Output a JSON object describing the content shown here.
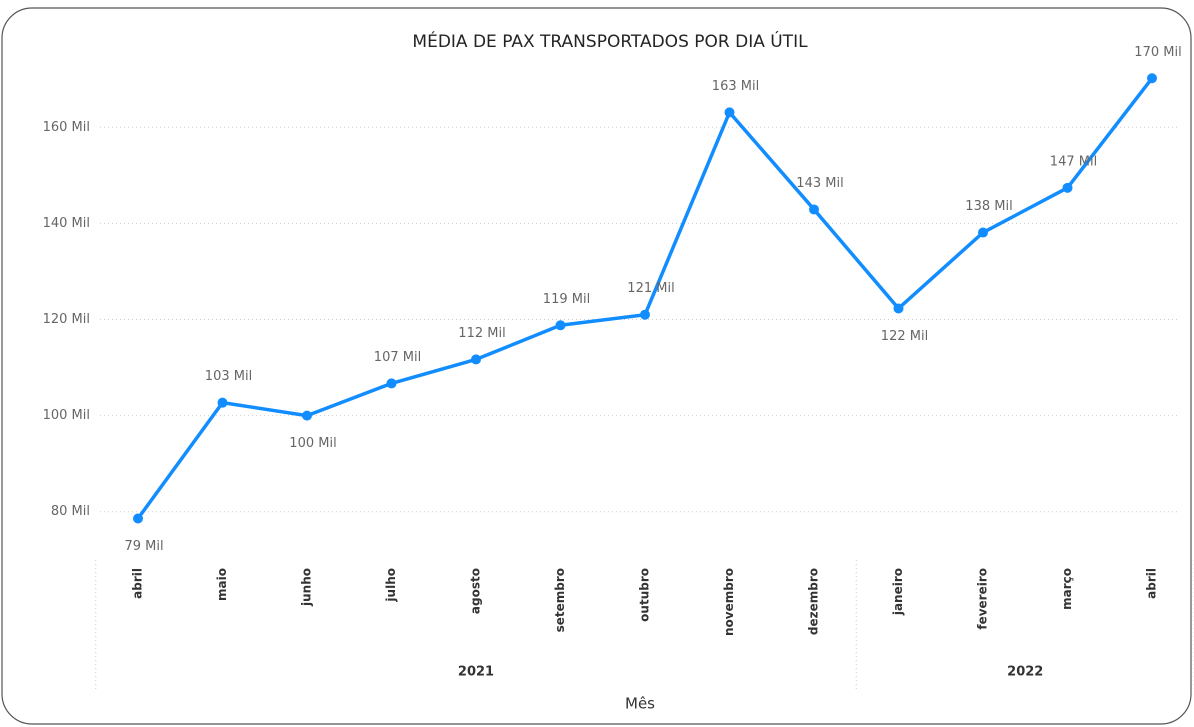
{
  "chart_data": {
    "type": "line",
    "title": "MÉDIA DE PAX TRANSPORTADOS POR DIA ÚTIL",
    "x_label": "Mês",
    "categories": [
      "abril",
      "maio",
      "junho",
      "julho",
      "agosto",
      "setembro",
      "outubro",
      "novembro",
      "dezembro",
      "janeiro",
      "fevereiro",
      "março",
      "abril"
    ],
    "x_groups": [
      {
        "label": "2021",
        "span": 9
      },
      {
        "label": "2022",
        "span": 4
      }
    ],
    "series": [
      {
        "name": "Média de PAX",
        "color": "#118DFF",
        "values": [
          78600,
          102700,
          100000,
          106700,
          111700,
          118800,
          121000,
          163100,
          142900,
          122300,
          138100,
          147400,
          170200
        ],
        "value_labels": [
          "79 Mil",
          "103 Mil",
          "100 Mil",
          "107 Mil",
          "112 Mil",
          "119 Mil",
          "121 Mil",
          "163 Mil",
          "143 Mil",
          "122 Mil",
          "138 Mil",
          "147 Mil",
          "170 Mil"
        ]
      }
    ],
    "ylim": [
      71000,
      174000
    ],
    "yticks": [
      {
        "value": 80000,
        "label": "80 Mil"
      },
      {
        "value": 100000,
        "label": "100 Mil"
      },
      {
        "value": 120000,
        "label": "120 Mil"
      },
      {
        "value": 140000,
        "label": "140 Mil"
      },
      {
        "value": 160000,
        "label": "160 Mil"
      }
    ],
    "grid": true
  }
}
